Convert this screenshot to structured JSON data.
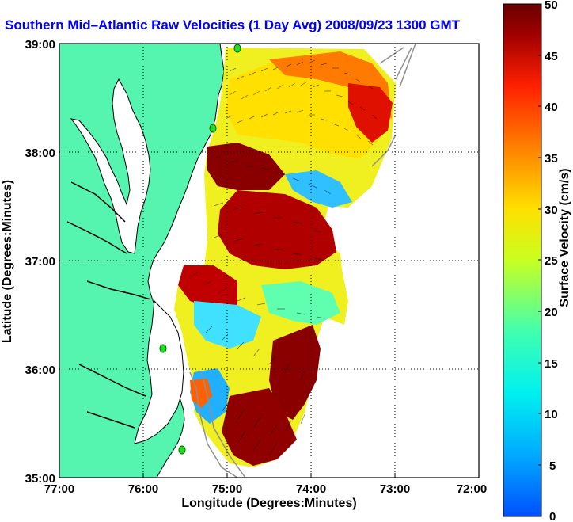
{
  "title": "Southern Mid–Atlantic Raw Velocities (1 Day Avg) 2008/09/23 1300 GMT",
  "x_axis": {
    "label": "Longitude (Degrees:Minutes)",
    "ticks": [
      "77:00",
      "76:00",
      "75:00",
      "74:00",
      "73:00",
      "72:00"
    ]
  },
  "y_axis": {
    "label": "Latitude (Degrees:Minutes)",
    "ticks": [
      "39:00",
      "38:00",
      "37:00",
      "36:00",
      "35:00"
    ]
  },
  "colorbar": {
    "label": "Surface Velocity (cm/s)",
    "ticks": [
      "50",
      "45",
      "40",
      "35",
      "30",
      "25",
      "20",
      "15",
      "10",
      "5",
      "0"
    ],
    "min": 0,
    "max": 50,
    "colors": [
      "#0050ff",
      "#00c8ff",
      "#40ffb0",
      "#c8ff20",
      "#ffe000",
      "#ff8000",
      "#ff2000",
      "#a00000",
      "#6a0000"
    ]
  },
  "colors": {
    "land": "#55f5b0",
    "coastline": "#000000",
    "grid": "#000000",
    "title": "#0000ff",
    "station": "#22dd22"
  },
  "grid": true,
  "icons": [
    "station-marker-icon"
  ]
}
